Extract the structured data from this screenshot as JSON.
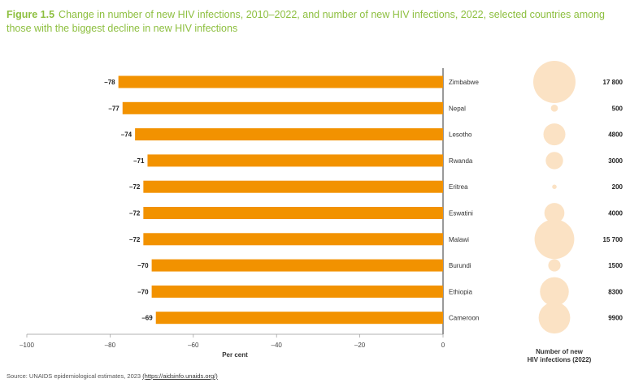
{
  "figure": {
    "label": "Figure 1.5",
    "title": "Change in number of new HIV infections, 2010–2022, and number of new HIV infections, 2022, selected countries among those with the biggest decline in new HIV infections"
  },
  "source": {
    "text": "Source: UNAIDS epidemiological estimates, 2023",
    "link": "(https://aidsinfo.unaids.org/)"
  },
  "colors": {
    "bar": "#f29200",
    "bubble": "#fbe2c4",
    "title": "#8dbf3f"
  },
  "chart_data": [
    {
      "type": "bar",
      "orientation": "horizontal",
      "categories": [
        "Zimbabwe",
        "Nepal",
        "Lesotho",
        "Rwanda",
        "Eritrea",
        "Eswatini",
        "Malawi",
        "Burundi",
        "Ethiopia",
        "Cameroon"
      ],
      "values": [
        -78,
        -77,
        -74,
        -71,
        -72,
        -72,
        -72,
        -70,
        -70,
        -69
      ],
      "value_labels": [
        "–78",
        "–77",
        "–74",
        "–71",
        "–72",
        "–72",
        "–72",
        "–70",
        "–70",
        "–69"
      ],
      "xlabel": "Per cent",
      "xlim": [
        -100,
        0
      ],
      "xticks": [
        -100,
        -80,
        -60,
        -40,
        -20,
        0
      ],
      "xtick_labels": [
        "–100",
        "–80",
        "–60",
        "–40",
        "–20",
        "0"
      ],
      "grid": false
    },
    {
      "type": "scatter",
      "subtype": "bubble",
      "categories": [
        "Zimbabwe",
        "Nepal",
        "Lesotho",
        "Rwanda",
        "Eritrea",
        "Eswatini",
        "Malawi",
        "Burundi",
        "Ethiopia",
        "Cameroon"
      ],
      "values": [
        17800,
        500,
        4800,
        3000,
        200,
        4000,
        15700,
        1500,
        8300,
        9900
      ],
      "value_labels": [
        "17 800",
        "500",
        "4800",
        "3000",
        "200",
        "4000",
        "15 700",
        "1500",
        "8300",
        "9900"
      ],
      "xlabel": "Number of new HIV infections (2022)"
    }
  ]
}
